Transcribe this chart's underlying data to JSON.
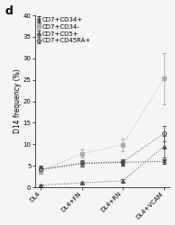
{
  "title_label": "d",
  "xlabel_categories": [
    "DL4",
    "DL4+FN",
    "DL4+RN",
    "DL4+VCAM"
  ],
  "ylabel": "D14 frequency (%)",
  "ylim": [
    0,
    40
  ],
  "yticks": [
    0,
    5,
    10,
    15,
    20,
    25,
    30,
    35,
    40
  ],
  "ytick_labels": [
    "0",
    "5",
    "10",
    "15",
    "20",
    "25",
    "30",
    "35",
    "40"
  ],
  "series": [
    {
      "label": "CD7+CD34+",
      "marker": "x",
      "color": "#333333",
      "linestyle": "dotted",
      "values": [
        4.1,
        5.5,
        5.8,
        6.0
      ],
      "errors": [
        0.8,
        0.6,
        0.7,
        0.5
      ]
    },
    {
      "label": "CD7+CD34-",
      "marker": "s",
      "color": "#aaaaaa",
      "linestyle": "dotted",
      "values": [
        3.8,
        7.8,
        9.9,
        25.3
      ],
      "errors": [
        0.6,
        0.9,
        1.5,
        6.0
      ]
    },
    {
      "label": "CD7+CD5+",
      "marker": "^",
      "color": "#555555",
      "linestyle": "dotted",
      "values": [
        0.5,
        1.0,
        1.5,
        9.5
      ],
      "errors": [
        0.15,
        0.2,
        0.4,
        2.5
      ]
    },
    {
      "label": "CD7+CD45RA+",
      "marker": "o",
      "color": "#555555",
      "linestyle": "dotted",
      "values": [
        4.2,
        5.6,
        5.9,
        12.5
      ],
      "errors": [
        0.9,
        0.7,
        0.6,
        1.8
      ]
    }
  ],
  "background_color": "#f5f5f5",
  "legend_fontsize": 5.0,
  "axis_fontsize": 5.5,
  "tick_fontsize": 5.0,
  "markersize": 3.0,
  "linewidth": 0.7,
  "panel_label_fontsize": 9
}
